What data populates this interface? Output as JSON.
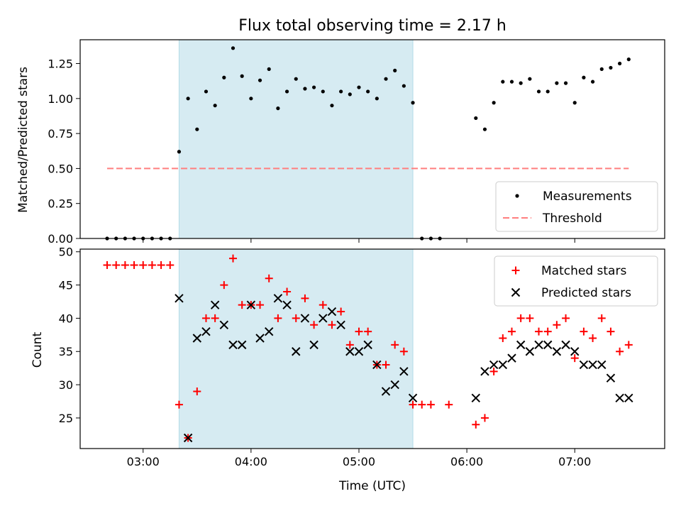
{
  "figure": {
    "title": "Flux total observing time = 2.17 h"
  },
  "colors": {
    "shade": "#add8e6",
    "measurement": "#000000",
    "threshold": "#ff7f7f",
    "matched": "#ff0000",
    "predicted": "#000000"
  },
  "chart_data": [
    {
      "type": "scatter",
      "title": "Flux total observing time = 2.17 h",
      "xlabel": "",
      "ylabel": "Matched/Predicted stars",
      "xlim": [
        "02:25",
        "07:50"
      ],
      "ylim": [
        0,
        1.42
      ],
      "yticks": [
        "0.00",
        "0.25",
        "0.50",
        "0.75",
        "1.00",
        "1.25"
      ],
      "shaded_interval": [
        "03:20",
        "05:30"
      ],
      "legend": {
        "position": "lower-right",
        "entries": [
          "Measurements",
          "Threshold"
        ]
      },
      "threshold": {
        "name": "Threshold",
        "value": 0.5,
        "x": [
          "02:40",
          "07:30"
        ],
        "style": "dashed"
      },
      "series": [
        {
          "name": "Measurements",
          "marker": "dot",
          "points": [
            [
              "02:40",
              0
            ],
            [
              "02:45",
              0
            ],
            [
              "02:50",
              0
            ],
            [
              "02:55",
              0
            ],
            [
              "03:00",
              0
            ],
            [
              "03:05",
              0
            ],
            [
              "03:10",
              0
            ],
            [
              "03:15",
              0
            ],
            [
              "03:20",
              0.62
            ],
            [
              "03:25",
              1.0
            ],
            [
              "03:30",
              0.78
            ],
            [
              "03:35",
              1.05
            ],
            [
              "03:40",
              0.95
            ],
            [
              "03:45",
              1.15
            ],
            [
              "03:50",
              1.36
            ],
            [
              "03:55",
              1.16
            ],
            [
              "04:00",
              1.0
            ],
            [
              "04:05",
              1.13
            ],
            [
              "04:10",
              1.21
            ],
            [
              "04:15",
              0.93
            ],
            [
              "04:20",
              1.05
            ],
            [
              "04:25",
              1.14
            ],
            [
              "04:30",
              1.07
            ],
            [
              "04:35",
              1.08
            ],
            [
              "04:40",
              1.05
            ],
            [
              "04:45",
              0.95
            ],
            [
              "04:50",
              1.05
            ],
            [
              "04:55",
              1.03
            ],
            [
              "05:00",
              1.08
            ],
            [
              "05:05",
              1.05
            ],
            [
              "05:10",
              1.0
            ],
            [
              "05:15",
              1.14
            ],
            [
              "05:20",
              1.2
            ],
            [
              "05:25",
              1.09
            ],
            [
              "05:30",
              0.97
            ],
            [
              "05:35",
              0
            ],
            [
              "05:40",
              0
            ],
            [
              "05:45",
              0
            ],
            [
              "06:05",
              0.86
            ],
            [
              "06:10",
              0.78
            ],
            [
              "06:15",
              0.97
            ],
            [
              "06:20",
              1.12
            ],
            [
              "06:25",
              1.12
            ],
            [
              "06:30",
              1.11
            ],
            [
              "06:35",
              1.14
            ],
            [
              "06:40",
              1.05
            ],
            [
              "06:45",
              1.05
            ],
            [
              "06:50",
              1.11
            ],
            [
              "06:55",
              1.11
            ],
            [
              "07:00",
              0.97
            ],
            [
              "07:05",
              1.15
            ],
            [
              "07:10",
              1.12
            ],
            [
              "07:15",
              1.21
            ],
            [
              "07:20",
              1.22
            ],
            [
              "07:25",
              1.25
            ],
            [
              "07:30",
              1.28
            ]
          ]
        }
      ]
    },
    {
      "type": "scatter",
      "xlabel": "Time (UTC)",
      "ylabel": "Count",
      "xlim": [
        "02:25",
        "07:50"
      ],
      "ylim": [
        20.4,
        50.4
      ],
      "xticks": [
        "03:00",
        "04:00",
        "05:00",
        "06:00",
        "07:00"
      ],
      "yticks": [
        "25",
        "30",
        "35",
        "40",
        "45",
        "50"
      ],
      "shaded_interval": [
        "03:20",
        "05:30"
      ],
      "legend": {
        "position": "upper-right",
        "entries": [
          "Matched stars",
          "Predicted stars"
        ]
      },
      "series": [
        {
          "name": "Matched stars",
          "marker": "plus",
          "points": [
            [
              "02:40",
              48
            ],
            [
              "02:45",
              48
            ],
            [
              "02:50",
              48
            ],
            [
              "02:55",
              48
            ],
            [
              "03:00",
              48
            ],
            [
              "03:05",
              48
            ],
            [
              "03:10",
              48
            ],
            [
              "03:15",
              48
            ],
            [
              "03:20",
              27
            ],
            [
              "03:25",
              22
            ],
            [
              "03:30",
              29
            ],
            [
              "03:35",
              40
            ],
            [
              "03:40",
              40
            ],
            [
              "03:45",
              45
            ],
            [
              "03:50",
              49
            ],
            [
              "03:55",
              42
            ],
            [
              "04:00",
              42
            ],
            [
              "04:05",
              42
            ],
            [
              "04:10",
              46
            ],
            [
              "04:15",
              40
            ],
            [
              "04:20",
              44
            ],
            [
              "04:25",
              40
            ],
            [
              "04:30",
              43
            ],
            [
              "04:35",
              39
            ],
            [
              "04:40",
              42
            ],
            [
              "04:45",
              39
            ],
            [
              "04:50",
              41
            ],
            [
              "04:55",
              36
            ],
            [
              "05:00",
              38
            ],
            [
              "05:05",
              38
            ],
            [
              "05:10",
              33
            ],
            [
              "05:15",
              33
            ],
            [
              "05:20",
              36
            ],
            [
              "05:25",
              35
            ],
            [
              "05:30",
              27
            ],
            [
              "05:35",
              27
            ],
            [
              "05:40",
              27
            ],
            [
              "05:50",
              27
            ],
            [
              "06:05",
              24
            ],
            [
              "06:10",
              25
            ],
            [
              "06:15",
              32
            ],
            [
              "06:20",
              37
            ],
            [
              "06:25",
              38
            ],
            [
              "06:30",
              40
            ],
            [
              "06:35",
              40
            ],
            [
              "06:40",
              38
            ],
            [
              "06:45",
              38
            ],
            [
              "06:50",
              39
            ],
            [
              "06:55",
              40
            ],
            [
              "07:00",
              34
            ],
            [
              "07:05",
              38
            ],
            [
              "07:10",
              37
            ],
            [
              "07:15",
              40
            ],
            [
              "07:20",
              38
            ],
            [
              "07:25",
              35
            ],
            [
              "07:30",
              36
            ]
          ]
        },
        {
          "name": "Predicted stars",
          "marker": "x",
          "points": [
            [
              "03:20",
              43
            ],
            [
              "03:25",
              22
            ],
            [
              "03:30",
              37
            ],
            [
              "03:35",
              38
            ],
            [
              "03:40",
              42
            ],
            [
              "03:45",
              39
            ],
            [
              "03:50",
              36
            ],
            [
              "03:55",
              36
            ],
            [
              "04:00",
              42
            ],
            [
              "04:05",
              37
            ],
            [
              "04:10",
              38
            ],
            [
              "04:15",
              43
            ],
            [
              "04:20",
              42
            ],
            [
              "04:25",
              35
            ],
            [
              "04:30",
              40
            ],
            [
              "04:35",
              36
            ],
            [
              "04:40",
              40
            ],
            [
              "04:45",
              41
            ],
            [
              "04:50",
              39
            ],
            [
              "04:55",
              35
            ],
            [
              "05:00",
              35
            ],
            [
              "05:05",
              36
            ],
            [
              "05:10",
              33
            ],
            [
              "05:15",
              29
            ],
            [
              "05:20",
              30
            ],
            [
              "05:25",
              32
            ],
            [
              "05:30",
              28
            ],
            [
              "06:05",
              28
            ],
            [
              "06:10",
              32
            ],
            [
              "06:15",
              33
            ],
            [
              "06:20",
              33
            ],
            [
              "06:25",
              34
            ],
            [
              "06:30",
              36
            ],
            [
              "06:35",
              35
            ],
            [
              "06:40",
              36
            ],
            [
              "06:45",
              36
            ],
            [
              "06:50",
              35
            ],
            [
              "06:55",
              36
            ],
            [
              "07:00",
              35
            ],
            [
              "07:05",
              33
            ],
            [
              "07:10",
              33
            ],
            [
              "07:15",
              33
            ],
            [
              "07:20",
              31
            ],
            [
              "07:25",
              28
            ],
            [
              "07:30",
              28
            ]
          ]
        }
      ]
    }
  ]
}
